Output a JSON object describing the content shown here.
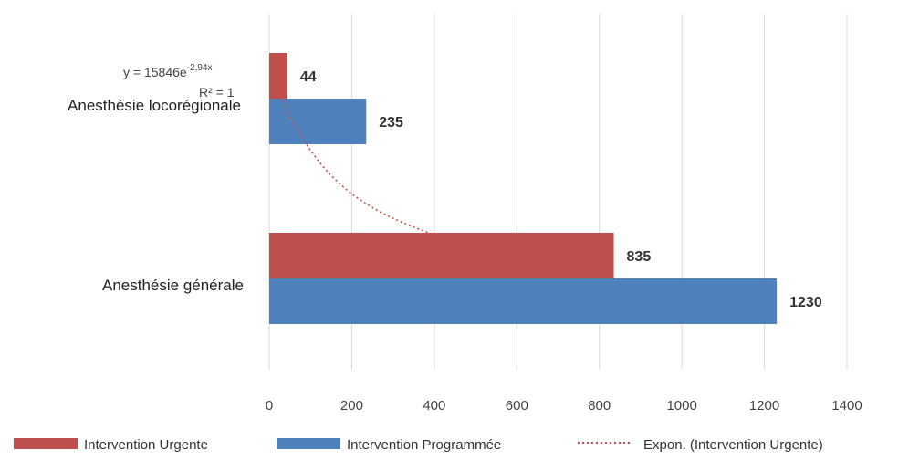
{
  "chart_data": {
    "type": "bar",
    "orientation": "horizontal",
    "title": "",
    "xlabel": "",
    "ylabel": "",
    "categories": [
      "Anesthésie locorégionale",
      "Anesthésie générale"
    ],
    "series": [
      {
        "name": "Intervention Urgente",
        "values": [
          44,
          835
        ],
        "color": "#c0504d"
      },
      {
        "name": "Intervention Programmée",
        "values": [
          235,
          1230
        ],
        "color": "#4f81bd"
      }
    ],
    "trendline": {
      "name": "Expon. (Intervention Urgente)",
      "series": "Intervention Urgente",
      "kind": "exponential",
      "equation": "y = 15846e",
      "exponent": "-2,94x",
      "r2": "R² = 1",
      "color": "#c0504d"
    },
    "xlim": [
      0,
      1400
    ],
    "xticks": [
      0,
      200,
      400,
      600,
      800,
      1000,
      1200,
      1400
    ],
    "xtick_labels": [
      "0",
      "200",
      "400",
      "600",
      "800",
      "1000",
      "1200",
      "1400"
    ],
    "grid": "vertical",
    "legend_position": "bottom"
  }
}
